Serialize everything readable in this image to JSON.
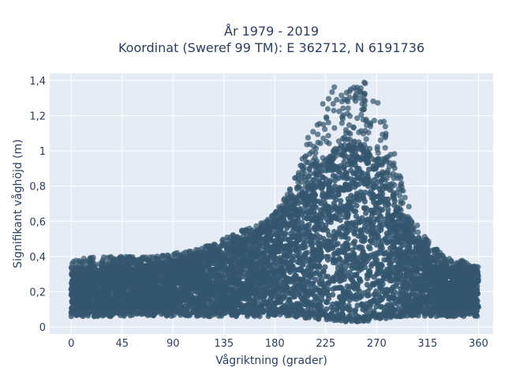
{
  "chart_data": {
    "type": "scatter",
    "title_line1": "År 1979 - 2019",
    "title_line2": "Koordinat (Sweref 99 TM): E 362712, N 6191736",
    "xlabel": "Vågriktning (grader)",
    "ylabel": "Signifikant våghöjd (m)",
    "xlim": [
      -19,
      373
    ],
    "ylim": [
      -0.04,
      1.44
    ],
    "xticks": [
      0,
      45,
      90,
      135,
      180,
      225,
      270,
      315,
      360
    ],
    "xtick_labels": [
      "0",
      "45",
      "90",
      "135",
      "180",
      "225",
      "270",
      "315",
      "360"
    ],
    "yticks": [
      0,
      0.2,
      0.4,
      0.6,
      0.8,
      1.0,
      1.2,
      1.4
    ],
    "ytick_labels": [
      "0",
      "0,2",
      "0,4",
      "0,6",
      "0,8",
      "1",
      "1,2",
      "1,4"
    ],
    "grid": true,
    "plot_background": "#e5ecf6",
    "marker_color": "#34566e",
    "envelope": {
      "direction": [
        0,
        15,
        30,
        45,
        60,
        75,
        90,
        105,
        120,
        135,
        150,
        165,
        180,
        195,
        210,
        225,
        240,
        250,
        260,
        270,
        280,
        290,
        300,
        315,
        330,
        345,
        360
      ],
      "lower": [
        0.06,
        0.06,
        0.06,
        0.06,
        0.06,
        0.06,
        0.06,
        0.06,
        0.06,
        0.06,
        0.06,
        0.06,
        0.06,
        0.06,
        0.05,
        0.04,
        0.03,
        0.03,
        0.03,
        0.04,
        0.05,
        0.06,
        0.06,
        0.06,
        0.06,
        0.06,
        0.06
      ],
      "dense_upper": [
        0.3,
        0.32,
        0.33,
        0.33,
        0.34,
        0.34,
        0.35,
        0.37,
        0.4,
        0.42,
        0.46,
        0.52,
        0.58,
        0.68,
        0.8,
        0.92,
        1.0,
        1.02,
        1.0,
        0.92,
        0.8,
        0.66,
        0.52,
        0.4,
        0.34,
        0.32,
        0.3
      ],
      "max_upper": [
        0.37,
        0.4,
        0.4,
        0.4,
        0.4,
        0.4,
        0.42,
        0.44,
        0.46,
        0.5,
        0.55,
        0.58,
        0.65,
        0.8,
        1.1,
        1.35,
        1.4,
        1.41,
        1.4,
        1.3,
        1.1,
        0.9,
        0.65,
        0.5,
        0.4,
        0.38,
        0.34
      ]
    }
  }
}
